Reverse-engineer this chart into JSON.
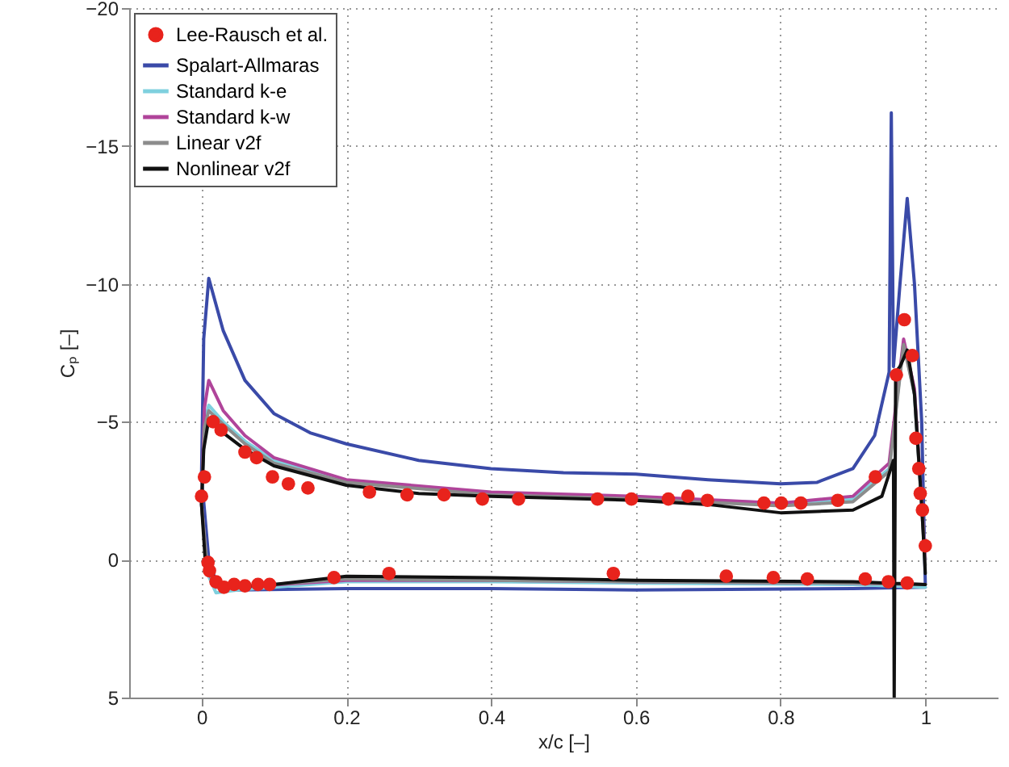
{
  "chart_data": {
    "type": "line",
    "xlabel": "x/c [–]",
    "ylabel": "Cₚ [–]",
    "xlim": [
      -0.1,
      1.1
    ],
    "ylim": [
      5,
      -20
    ],
    "xticks": [
      0,
      0.2,
      0.4,
      0.6,
      0.8,
      1
    ],
    "yticks": [
      -20,
      -15,
      -10,
      -5,
      0,
      5
    ],
    "grid": true,
    "legend": "top left",
    "line_style": "solid",
    "series": [
      {
        "name": "Lee-Rausch et al.",
        "type": "scatter",
        "marker": "circle",
        "color": "#e8231c",
        "x": [
          0.0,
          0.004,
          0.016,
          0.027,
          0.06,
          0.076,
          0.098,
          0.12,
          0.147,
          0.232,
          0.284,
          0.335,
          0.388,
          0.438,
          0.547,
          0.594,
          0.645,
          0.672,
          0.699,
          0.777,
          0.801,
          0.828,
          0.879,
          0.931,
          0.96,
          0.971,
          0.982,
          0.987,
          0.991,
          0.993,
          0.996,
          1.0,
          0.009,
          0.011,
          0.02,
          0.031,
          0.045,
          0.06,
          0.078,
          0.094,
          0.183,
          0.259,
          0.569,
          0.725,
          0.79,
          0.837,
          0.917,
          0.949,
          0.975
        ],
        "values": [
          -2.3,
          -3.0,
          -5.0,
          -4.7,
          -3.9,
          -3.7,
          -3.0,
          -2.75,
          -2.6,
          -2.45,
          -2.35,
          -2.35,
          -2.2,
          -2.2,
          -2.2,
          -2.2,
          -2.2,
          -2.3,
          -2.15,
          -2.05,
          -2.05,
          -2.05,
          -2.15,
          -3.0,
          -6.7,
          -8.7,
          -7.4,
          -4.4,
          -3.3,
          -2.4,
          -1.8,
          -0.5,
          0.1,
          0.4,
          0.8,
          1.0,
          0.9,
          0.95,
          0.9,
          0.9,
          0.65,
          0.5,
          0.5,
          0.6,
          0.65,
          0.7,
          0.7,
          0.8,
          0.85
        ]
      },
      {
        "name": "Spalart-Allmaras",
        "color": "#3a4aa8",
        "x": [
          1.0,
          0.9,
          0.6,
          0.4,
          0.2,
          0.05,
          0.02,
          0.01,
          0.0,
          0.003,
          0.01,
          0.03,
          0.06,
          0.1,
          0.15,
          0.2,
          0.3,
          0.4,
          0.5,
          0.6,
          0.7,
          0.8,
          0.85,
          0.9,
          0.93,
          0.95,
          0.953,
          0.956,
          0.965,
          0.975,
          0.985,
          0.995,
          1.0
        ],
        "values": [
          1.0,
          1.05,
          1.1,
          1.05,
          1.05,
          1.1,
          0.8,
          0.0,
          -3.0,
          -8.0,
          -10.2,
          -8.3,
          -6.5,
          -5.3,
          -4.6,
          -4.2,
          -3.6,
          -3.3,
          -3.15,
          -3.1,
          -2.9,
          -2.75,
          -2.8,
          -3.3,
          -4.5,
          -6.8,
          -16.2,
          -7.0,
          -10.0,
          -13.1,
          -10.0,
          -5.0,
          0.9
        ]
      },
      {
        "name": "Standard k-e",
        "color": "#7fd0de",
        "x": [
          1.0,
          0.9,
          0.6,
          0.4,
          0.2,
          0.05,
          0.02,
          0.008,
          0.0,
          0.004,
          0.01,
          0.03,
          0.06,
          0.1,
          0.2,
          0.4,
          0.6,
          0.8,
          0.9,
          0.95,
          0.97,
          0.985,
          1.0
        ],
        "values": [
          1.0,
          0.9,
          0.85,
          0.8,
          0.8,
          1.1,
          1.2,
          0.5,
          -2.0,
          -5.0,
          -5.6,
          -5.0,
          -4.3,
          -3.6,
          -2.85,
          -2.4,
          -2.25,
          -2.05,
          -2.2,
          -3.3,
          -7.9,
          -6.0,
          0.0
        ]
      },
      {
        "name": "Standard k-w",
        "color": "#b0449a",
        "x": [
          1.0,
          0.9,
          0.6,
          0.4,
          0.2,
          0.05,
          0.02,
          0.008,
          0.0,
          0.004,
          0.01,
          0.03,
          0.06,
          0.1,
          0.2,
          0.4,
          0.6,
          0.8,
          0.9,
          0.95,
          0.97,
          0.985,
          1.0
        ],
        "values": [
          0.9,
          0.85,
          0.8,
          0.75,
          0.75,
          1.0,
          1.0,
          0.4,
          -2.0,
          -5.5,
          -6.5,
          -5.4,
          -4.5,
          -3.7,
          -2.9,
          -2.45,
          -2.3,
          -2.05,
          -2.3,
          -3.5,
          -8.0,
          -6.2,
          0.0
        ]
      },
      {
        "name": "Linear v2f",
        "color": "#8c8c8c",
        "x": [
          1.0,
          0.9,
          0.6,
          0.4,
          0.2,
          0.05,
          0.02,
          0.008,
          0.0,
          0.004,
          0.01,
          0.03,
          0.06,
          0.1,
          0.2,
          0.4,
          0.6,
          0.8,
          0.9,
          0.95,
          0.97,
          0.985,
          1.0
        ],
        "values": [
          0.9,
          0.85,
          0.8,
          0.75,
          0.7,
          1.0,
          1.0,
          0.3,
          -2.0,
          -4.8,
          -5.4,
          -4.9,
          -4.2,
          -3.5,
          -2.8,
          -2.35,
          -2.2,
          -1.95,
          -2.1,
          -3.2,
          -7.8,
          -6.0,
          0.2
        ]
      },
      {
        "name": "Nonlinear v2f",
        "color": "#111111",
        "x": [
          1.0,
          0.9,
          0.6,
          0.4,
          0.2,
          0.1,
          0.04,
          0.02,
          0.005,
          0.0,
          0.003,
          0.01,
          0.03,
          0.06,
          0.1,
          0.2,
          0.3,
          0.4,
          0.6,
          0.7,
          0.8,
          0.9,
          0.94,
          0.956,
          0.957,
          0.959,
          0.965,
          0.975,
          0.985,
          0.995,
          1.0
        ],
        "values": [
          0.9,
          0.8,
          0.75,
          0.65,
          0.6,
          0.9,
          1.0,
          0.8,
          0.0,
          -2.0,
          -4.0,
          -5.1,
          -4.6,
          -4.0,
          -3.4,
          -2.7,
          -2.4,
          -2.3,
          -2.15,
          -2.0,
          -1.7,
          -1.8,
          -2.3,
          -3.6,
          5.0,
          -6.8,
          -7.0,
          -7.6,
          -6.0,
          -2.0,
          0.5
        ]
      }
    ]
  }
}
